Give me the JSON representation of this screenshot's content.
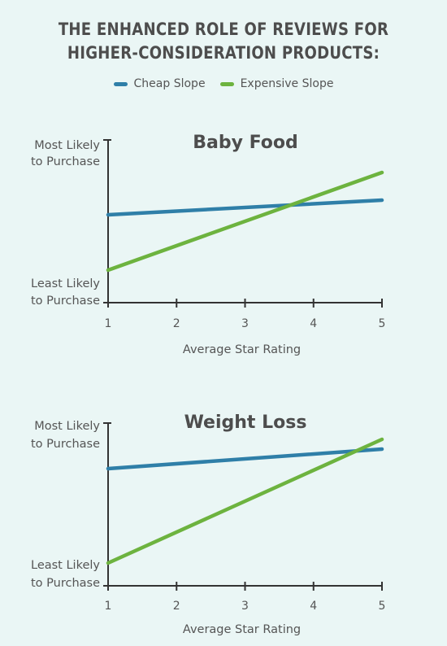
{
  "header": {
    "title_line1": "THE ENHANCED ROLE OF REVIEWS FOR",
    "title_line2": "HIGHER-CONSIDERATION PRODUCTS:"
  },
  "legend": [
    {
      "label": "Cheap Slope",
      "color": "#2f7fa8"
    },
    {
      "label": "Expensive Slope",
      "color": "#6db33f"
    }
  ],
  "chart_data": [
    {
      "type": "line",
      "title": "Baby Food",
      "xlabel": "Average Star Rating",
      "x_ticks": [
        1,
        2,
        3,
        4,
        5
      ],
      "xlim": [
        1,
        5
      ],
      "ylim": [
        0,
        1
      ],
      "y_top_label": [
        "Most Likely",
        "to Purchase"
      ],
      "y_bottom_label": [
        "Least Likely",
        "to Purchase"
      ],
      "series": [
        {
          "name": "Cheap Slope",
          "x": [
            1,
            5
          ],
          "y": [
            0.54,
            0.63
          ]
        },
        {
          "name": "Expensive Slope",
          "x": [
            1,
            5
          ],
          "y": [
            0.2,
            0.8
          ]
        }
      ]
    },
    {
      "type": "line",
      "title": "Weight Loss",
      "xlabel": "Average Star Rating",
      "x_ticks": [
        1,
        2,
        3,
        4,
        5
      ],
      "xlim": [
        1,
        5
      ],
      "ylim": [
        0,
        1
      ],
      "y_top_label": [
        "Most Likely",
        "to Purchase"
      ],
      "y_bottom_label": [
        "Least Likely",
        "to Purchase"
      ],
      "series": [
        {
          "name": "Cheap Slope",
          "x": [
            1,
            5
          ],
          "y": [
            0.72,
            0.84
          ]
        },
        {
          "name": "Expensive Slope",
          "x": [
            1,
            5
          ],
          "y": [
            0.14,
            0.9
          ]
        }
      ]
    }
  ]
}
